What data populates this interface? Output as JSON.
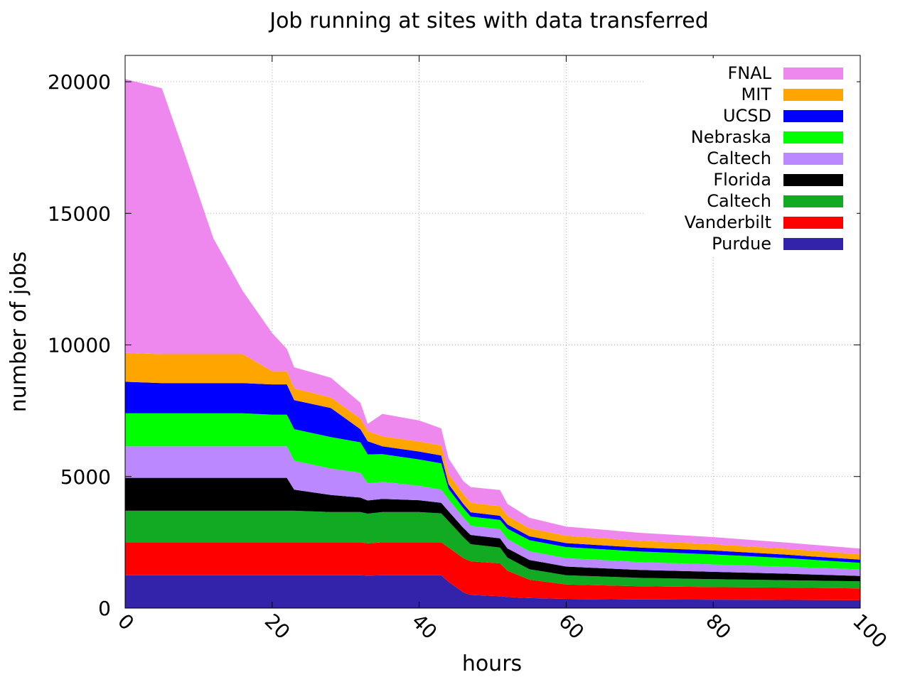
{
  "chart_data": {
    "type": "area",
    "stacked": true,
    "title": "Job running at sites with data transferred",
    "xlabel": "hours",
    "ylabel": "number of jobs",
    "xlim": [
      0,
      100
    ],
    "ylim": [
      0,
      21000
    ],
    "xticks": [
      0,
      20,
      40,
      60,
      80,
      100
    ],
    "yticks": [
      0,
      5000,
      10000,
      15000,
      20000
    ],
    "grid": true,
    "legend_position": "top-right",
    "x": [
      0,
      5,
      8,
      12,
      16,
      20,
      22,
      23,
      28,
      32,
      33,
      35,
      40,
      43,
      44,
      46,
      47,
      51,
      52,
      55,
      60,
      70,
      80,
      90,
      100
    ],
    "series": [
      {
        "name": "Purdue",
        "color": "#3322aa",
        "values": [
          1250,
          1250,
          1250,
          1250,
          1250,
          1250,
          1250,
          1250,
          1250,
          1250,
          1230,
          1250,
          1250,
          1250,
          1000,
          600,
          500,
          450,
          420,
          380,
          350,
          330,
          320,
          310,
          300
        ]
      },
      {
        "name": "Vanderbilt",
        "color": "#ff0000",
        "values": [
          1250,
          1250,
          1250,
          1250,
          1250,
          1250,
          1250,
          1250,
          1250,
          1250,
          1230,
          1250,
          1250,
          1250,
          1300,
          1300,
          1280,
          1250,
          1000,
          700,
          550,
          500,
          480,
          470,
          450
        ]
      },
      {
        "name": "Caltech",
        "color": "#11aa22",
        "values": [
          1200,
          1200,
          1200,
          1200,
          1200,
          1200,
          1200,
          1200,
          1150,
          1150,
          1130,
          1150,
          1150,
          1100,
          1000,
          800,
          650,
          600,
          500,
          400,
          350,
          320,
          300,
          280,
          270
        ]
      },
      {
        "name": "Florida",
        "color": "#000000",
        "values": [
          1250,
          1250,
          1250,
          1250,
          1250,
          1250,
          1250,
          800,
          650,
          550,
          500,
          500,
          450,
          400,
          380,
          350,
          350,
          350,
          350,
          350,
          330,
          300,
          280,
          250,
          200
        ]
      },
      {
        "name": "Caltech",
        "color": "#bb88ff",
        "values": [
          1200,
          1200,
          1200,
          1200,
          1200,
          1200,
          1200,
          1100,
          1000,
          950,
          650,
          650,
          550,
          500,
          450,
          400,
          350,
          350,
          350,
          330,
          320,
          300,
          280,
          260,
          250
        ]
      },
      {
        "name": "Nebraska",
        "color": "#00ff00",
        "values": [
          1250,
          1250,
          1250,
          1250,
          1250,
          1200,
          1200,
          1200,
          1200,
          1150,
          1100,
          1050,
          1000,
          1000,
          400,
          350,
          350,
          350,
          400,
          420,
          420,
          400,
          380,
          330,
          250
        ]
      },
      {
        "name": "UCSD",
        "color": "#0000ff",
        "values": [
          1200,
          1150,
          1150,
          1150,
          1150,
          1150,
          1150,
          1100,
          1100,
          500,
          500,
          300,
          300,
          300,
          180,
          160,
          160,
          160,
          160,
          150,
          150,
          150,
          150,
          130,
          120
        ]
      },
      {
        "name": "MIT",
        "color": "#ffa500",
        "values": [
          1100,
          1100,
          1100,
          1100,
          1100,
          500,
          500,
          450,
          400,
          400,
          380,
          380,
          380,
          380,
          380,
          370,
          360,
          360,
          330,
          300,
          280,
          260,
          240,
          220,
          200
        ]
      },
      {
        "name": "FNAL",
        "color": "#ee88ee",
        "values": [
          10400,
          10100,
          7700,
          4400,
          2400,
          1450,
          850,
          800,
          750,
          600,
          280,
          850,
          800,
          650,
          600,
          500,
          600,
          620,
          450,
          400,
          350,
          300,
          270,
          240,
          220
        ]
      }
    ]
  }
}
